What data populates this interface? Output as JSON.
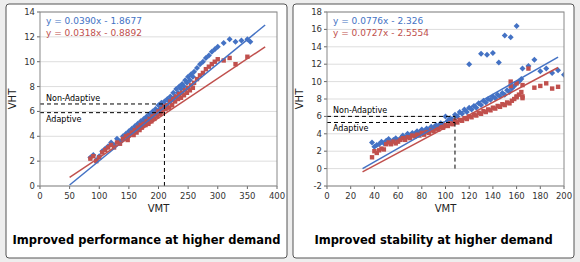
{
  "chart_data": [
    {
      "type": "scatter",
      "title": "Improved performance at higher demand",
      "x_label": "VMT",
      "y_label": "VHT",
      "xlim": [
        0,
        400
      ],
      "ylim": [
        0,
        14
      ],
      "xticks": [
        0,
        50,
        100,
        150,
        200,
        250,
        300,
        350,
        400
      ],
      "yticks": [
        0,
        2,
        4,
        6,
        8,
        10,
        12,
        14
      ],
      "grid": "y",
      "series": [
        {
          "type": "scatter",
          "color": "#4472C4",
          "marker": "diamond",
          "x": [
            85,
            90,
            95,
            100,
            105,
            110,
            115,
            120,
            125,
            130,
            135,
            140,
            145,
            148,
            150,
            155,
            158,
            160,
            163,
            165,
            168,
            170,
            172,
            175,
            178,
            180,
            183,
            185,
            188,
            190,
            193,
            195,
            198,
            200,
            203,
            205,
            207,
            210,
            212,
            215,
            218,
            220,
            223,
            225,
            228,
            230,
            233,
            235,
            238,
            240,
            243,
            245,
            248,
            250,
            253,
            255,
            258,
            260,
            265,
            270,
            275,
            280,
            285,
            290,
            295,
            300,
            310,
            320,
            330,
            340,
            350,
            355
          ],
          "values": [
            2.3,
            2.5,
            2.1,
            2.4,
            2.8,
            3.0,
            3.2,
            3.5,
            3.3,
            3.8,
            3.6,
            4.0,
            4.2,
            3.9,
            4.4,
            4.6,
            4.3,
            4.8,
            4.5,
            5.0,
            4.8,
            5.2,
            5.0,
            5.4,
            5.2,
            5.6,
            5.3,
            5.8,
            5.5,
            6.0,
            5.8,
            6.2,
            6.0,
            6.5,
            6.2,
            6.7,
            6.4,
            6.8,
            6.5,
            7.0,
            6.8,
            7.2,
            7.0,
            7.5,
            7.2,
            7.8,
            7.5,
            8.0,
            7.8,
            8.2,
            8.0,
            8.5,
            8.3,
            8.8,
            8.5,
            9.0,
            8.8,
            9.2,
            9.5,
            9.8,
            10.0,
            10.3,
            10.5,
            10.8,
            11.0,
            11.2,
            11.5,
            11.8,
            11.6,
            11.7,
            11.8,
            11.6
          ]
        },
        {
          "type": "scatter",
          "color": "#C0504D",
          "marker": "square",
          "x": [
            85,
            90,
            95,
            100,
            105,
            110,
            115,
            120,
            125,
            130,
            135,
            140,
            145,
            148,
            150,
            155,
            158,
            160,
            163,
            165,
            168,
            170,
            172,
            175,
            178,
            180,
            183,
            185,
            188,
            190,
            193,
            195,
            198,
            200,
            203,
            205,
            207,
            210,
            212,
            215,
            218,
            220,
            223,
            225,
            228,
            230,
            233,
            235,
            238,
            240,
            243,
            245,
            248,
            250,
            253,
            255,
            258,
            260,
            265,
            270,
            275,
            280,
            285,
            290,
            295,
            300,
            310,
            320,
            330,
            350
          ],
          "values": [
            2.2,
            2.4,
            2.0,
            2.3,
            2.7,
            2.9,
            3.1,
            3.3,
            3.1,
            3.5,
            3.4,
            3.8,
            4.0,
            3.7,
            4.1,
            4.3,
            4.1,
            4.5,
            4.3,
            4.7,
            4.5,
            4.9,
            4.7,
            5.0,
            4.9,
            5.2,
            5.0,
            5.4,
            5.2,
            5.6,
            5.4,
            5.8,
            5.6,
            6.0,
            5.8,
            6.2,
            6.0,
            6.4,
            6.2,
            6.5,
            6.3,
            6.8,
            6.5,
            7.0,
            6.8,
            7.2,
            7.0,
            7.4,
            7.1,
            7.5,
            7.3,
            7.7,
            7.5,
            7.9,
            7.7,
            8.1,
            7.9,
            8.3,
            8.6,
            8.9,
            9.1,
            9.4,
            9.6,
            9.8,
            10.0,
            10.2,
            10.1,
            10.3,
            9.8,
            10.4
          ]
        },
        {
          "type": "line",
          "color": "#4472C4",
          "line_style": "solid",
          "label": "y = 0.0390x - 1.8677",
          "x": [
            50,
            380
          ],
          "values": [
            0.0823,
            12.9523
          ]
        },
        {
          "type": "line",
          "color": "#C0504D",
          "line_style": "solid",
          "label": "y = 0.0318x - 0.8892",
          "x": [
            50,
            380
          ],
          "values": [
            0.7008,
            11.1948
          ]
        },
        {
          "type": "line",
          "color": "#000000",
          "line_style": "dashed",
          "label": "Non-Adaptive",
          "x": [
            0,
            210
          ],
          "values": [
            6.6,
            6.6
          ]
        },
        {
          "type": "line",
          "color": "#000000",
          "line_style": "dashed",
          "label": "Adaptive",
          "x": [
            0,
            210
          ],
          "values": [
            5.9,
            5.9
          ]
        },
        {
          "type": "line",
          "color": "#000000",
          "line_style": "dashed",
          "x": [
            210,
            210
          ],
          "values": [
            0,
            6.6
          ]
        }
      ]
    },
    {
      "type": "scatter",
      "title": "Improved stability at higher demand",
      "x_label": "VMT",
      "y_label": "VHT",
      "xlim": [
        0,
        200
      ],
      "ylim": [
        -2,
        18
      ],
      "xticks": [
        0,
        20,
        40,
        60,
        80,
        100,
        120,
        140,
        160,
        180,
        200
      ],
      "yticks": [
        -2,
        0,
        2,
        4,
        6,
        8,
        10,
        12,
        14,
        16,
        18
      ],
      "grid": "y",
      "series": [
        {
          "type": "scatter",
          "color": "#4472C4",
          "marker": "diamond",
          "x": [
            38,
            40,
            42,
            44,
            46,
            48,
            50,
            52,
            54,
            56,
            58,
            60,
            62,
            64,
            66,
            68,
            70,
            72,
            74,
            76,
            78,
            80,
            82,
            84,
            86,
            88,
            90,
            92,
            94,
            96,
            98,
            100,
            102,
            104,
            106,
            108,
            110,
            112,
            114,
            116,
            118,
            120,
            122,
            124,
            126,
            128,
            130,
            132,
            134,
            136,
            138,
            140,
            142,
            144,
            146,
            148,
            150,
            152,
            154,
            156,
            158,
            160,
            162,
            164,
            120,
            130,
            135,
            140,
            145,
            150,
            155,
            160,
            165,
            170,
            175,
            180,
            185,
            190,
            195,
            200
          ],
          "values": [
            3.0,
            2.5,
            2.7,
            2.8,
            3.1,
            2.9,
            3.2,
            3.4,
            3.0,
            3.3,
            3.5,
            3.2,
            3.5,
            3.8,
            3.6,
            4.0,
            3.8,
            4.1,
            4.0,
            4.3,
            4.2,
            4.5,
            4.3,
            4.6,
            4.5,
            4.8,
            4.7,
            5.0,
            4.9,
            5.2,
            5.1,
            6.0,
            5.5,
            5.8,
            5.6,
            6.2,
            6.0,
            6.5,
            6.3,
            6.8,
            6.5,
            7.0,
            6.8,
            7.2,
            7.0,
            7.5,
            7.3,
            7.8,
            7.6,
            8.0,
            7.9,
            8.3,
            8.1,
            8.5,
            8.3,
            8.7,
            8.5,
            9.0,
            8.8,
            9.2,
            9.5,
            9.8,
            10.0,
            10.3,
            12.0,
            13.2,
            13.1,
            13.3,
            12.2,
            15.3,
            15.1,
            16.4,
            11.5,
            11.8,
            12.5,
            11.2,
            11.5,
            11.0,
            11.3,
            10.8
          ]
        },
        {
          "type": "scatter",
          "color": "#C0504D",
          "marker": "square",
          "x": [
            38,
            40,
            42,
            44,
            46,
            48,
            50,
            52,
            54,
            56,
            58,
            60,
            62,
            64,
            66,
            68,
            70,
            72,
            74,
            76,
            78,
            80,
            82,
            84,
            86,
            88,
            90,
            92,
            94,
            96,
            98,
            100,
            102,
            104,
            106,
            108,
            110,
            112,
            114,
            116,
            118,
            120,
            122,
            124,
            126,
            128,
            130,
            132,
            134,
            136,
            138,
            140,
            142,
            144,
            146,
            148,
            150,
            152,
            154,
            156,
            158,
            160,
            162,
            164,
            165,
            165,
            160,
            155,
            155,
            160,
            165,
            170,
            175,
            180,
            185,
            190,
            195
          ],
          "values": [
            1.3,
            2.0,
            1.8,
            2.1,
            2.3,
            2.2,
            2.8,
            3.0,
            2.8,
            3.1,
            2.9,
            3.1,
            3.3,
            3.5,
            3.3,
            3.6,
            3.5,
            3.8,
            3.7,
            3.9,
            3.8,
            4.1,
            3.9,
            4.2,
            4.1,
            4.4,
            4.3,
            4.6,
            4.5,
            4.8,
            4.7,
            5.0,
            4.9,
            5.2,
            5.1,
            5.5,
            5.3,
            5.6,
            5.5,
            5.8,
            5.7,
            6.0,
            5.9,
            6.2,
            6.1,
            6.4,
            6.3,
            6.6,
            6.5,
            6.8,
            6.7,
            7.0,
            6.9,
            7.2,
            7.1,
            7.4,
            7.3,
            7.6,
            7.5,
            7.8,
            8.0,
            8.3,
            8.5,
            8.8,
            8.1,
            8.3,
            8.2,
            9.5,
            10.0,
            9.8,
            9.6,
            11.5,
            9.3,
            9.5,
            9.8,
            9.2,
            9.4
          ]
        },
        {
          "type": "line",
          "color": "#4472C4",
          "line_style": "solid",
          "label": "y = 0.0776x - 2.326",
          "x": [
            30,
            195
          ],
          "values": [
            0.002,
            12.806
          ]
        },
        {
          "type": "line",
          "color": "#C0504D",
          "line_style": "solid",
          "label": "y = 0.0727x - 2.5554",
          "x": [
            30,
            195
          ],
          "values": [
            -0.3744,
            11.6211
          ]
        },
        {
          "type": "line",
          "color": "#000000",
          "line_style": "dashed",
          "label": "Non-Adaptive",
          "x": [
            0,
            108
          ],
          "values": [
            6.0,
            6.0
          ]
        },
        {
          "type": "line",
          "color": "#000000",
          "line_style": "dashed",
          "label": "Adaptive",
          "x": [
            0,
            108
          ],
          "values": [
            5.3,
            5.3
          ]
        },
        {
          "type": "line",
          "color": "#000000",
          "line_style": "dashed",
          "x": [
            108,
            108
          ],
          "values": [
            0,
            6.0
          ]
        }
      ]
    }
  ]
}
